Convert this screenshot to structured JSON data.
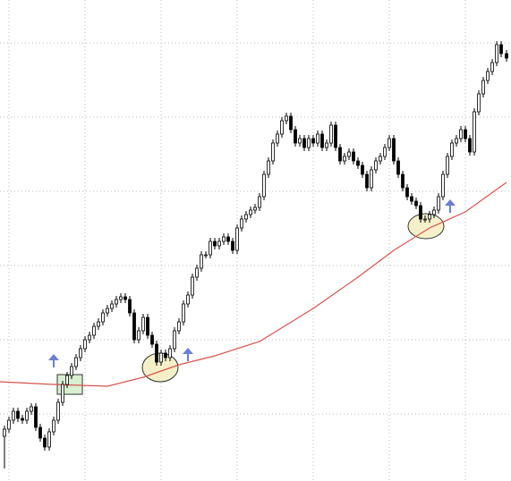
{
  "chart_data": {
    "type": "candlestick",
    "x": [
      5,
      10,
      15,
      20,
      25,
      30,
      35,
      40,
      45,
      50,
      55,
      60,
      65,
      70,
      75,
      80,
      85,
      90,
      95,
      100,
      105,
      110,
      115,
      120,
      125,
      130,
      135,
      140,
      145,
      150,
      155,
      160,
      165,
      170,
      175,
      180,
      185,
      190,
      195,
      200,
      205,
      210,
      215,
      220,
      225,
      230,
      235,
      240,
      245,
      250,
      255,
      260,
      265,
      270,
      275,
      280,
      285,
      290,
      295,
      300,
      305,
      310,
      315,
      320,
      325,
      330,
      335,
      340,
      345,
      350,
      355,
      360,
      365,
      370,
      375,
      380,
      385,
      390,
      395,
      400,
      405,
      410,
      415,
      420,
      425,
      430,
      435,
      440,
      445,
      450,
      455,
      460,
      465,
      470,
      475,
      480,
      485,
      490,
      495,
      500,
      505,
      510,
      515,
      520,
      525,
      530,
      535,
      540,
      545,
      550,
      555,
      560,
      566
    ],
    "open": [
      50,
      58,
      68,
      78,
      70,
      68,
      78,
      83,
      60,
      48,
      38,
      55,
      68,
      88,
      108,
      118,
      128,
      138,
      148,
      158,
      163,
      173,
      178,
      188,
      193,
      198,
      203,
      206,
      203,
      188,
      158,
      168,
      183,
      163,
      153,
      133,
      143,
      138,
      148,
      168,
      178,
      198,
      208,
      228,
      238,
      253,
      253,
      268,
      263,
      268,
      273,
      268,
      258,
      283,
      293,
      298,
      303,
      306,
      318,
      343,
      358,
      378,
      388,
      403,
      408,
      393,
      378,
      383,
      373,
      383,
      378,
      388,
      373,
      378,
      398,
      373,
      358,
      363,
      368,
      358,
      353,
      343,
      328,
      348,
      358,
      363,
      373,
      383,
      358,
      343,
      328,
      318,
      313,
      308,
      293,
      293,
      298,
      303,
      318,
      343,
      363,
      378,
      383,
      393,
      383,
      368,
      413,
      433,
      448,
      458,
      468,
      488,
      478
    ],
    "high": [
      62,
      72,
      82,
      82,
      74,
      82,
      87,
      87,
      64,
      52,
      59,
      72,
      92,
      112,
      122,
      132,
      142,
      152,
      162,
      167,
      177,
      182,
      192,
      197,
      202,
      207,
      210,
      210,
      207,
      192,
      172,
      187,
      187,
      167,
      157,
      147,
      147,
      152,
      172,
      182,
      202,
      212,
      232,
      242,
      257,
      257,
      272,
      272,
      272,
      277,
      277,
      272,
      287,
      297,
      302,
      307,
      310,
      322,
      347,
      362,
      382,
      392,
      407,
      412,
      412,
      397,
      387,
      387,
      387,
      387,
      392,
      392,
      382,
      402,
      402,
      377,
      367,
      372,
      372,
      362,
      357,
      347,
      352,
      362,
      367,
      377,
      387,
      387,
      362,
      347,
      332,
      322,
      317,
      312,
      297,
      302,
      307,
      322,
      347,
      367,
      382,
      387,
      397,
      397,
      387,
      417,
      437,
      452,
      462,
      472,
      492,
      492,
      482
    ],
    "low": [
      14,
      54,
      64,
      66,
      64,
      64,
      74,
      56,
      44,
      34,
      34,
      51,
      64,
      84,
      104,
      114,
      124,
      134,
      144,
      154,
      159,
      169,
      174,
      184,
      189,
      194,
      199,
      199,
      184,
      154,
      154,
      164,
      159,
      149,
      129,
      129,
      134,
      134,
      144,
      164,
      174,
      194,
      204,
      224,
      234,
      249,
      249,
      259,
      259,
      264,
      264,
      254,
      254,
      279,
      289,
      294,
      299,
      302,
      314,
      339,
      354,
      374,
      384,
      399,
      389,
      374,
      374,
      369,
      369,
      374,
      374,
      369,
      369,
      374,
      369,
      354,
      354,
      359,
      354,
      349,
      339,
      324,
      324,
      344,
      354,
      359,
      369,
      354,
      339,
      324,
      314,
      309,
      304,
      289,
      289,
      289,
      294,
      299,
      314,
      339,
      359,
      374,
      379,
      379,
      364,
      364,
      409,
      429,
      444,
      454,
      464,
      474,
      469
    ],
    "close": [
      58,
      68,
      78,
      70,
      68,
      78,
      83,
      60,
      48,
      38,
      55,
      68,
      88,
      108,
      118,
      128,
      138,
      148,
      158,
      163,
      173,
      178,
      188,
      193,
      198,
      203,
      206,
      203,
      188,
      158,
      168,
      183,
      163,
      153,
      133,
      143,
      138,
      148,
      168,
      178,
      198,
      208,
      228,
      238,
      253,
      253,
      268,
      263,
      268,
      273,
      268,
      258,
      283,
      293,
      298,
      303,
      306,
      318,
      343,
      358,
      378,
      388,
      403,
      408,
      393,
      378,
      383,
      373,
      383,
      378,
      388,
      373,
      378,
      398,
      373,
      358,
      363,
      368,
      358,
      353,
      343,
      328,
      348,
      358,
      363,
      373,
      383,
      358,
      343,
      328,
      318,
      313,
      308,
      293,
      293,
      298,
      303,
      318,
      343,
      363,
      378,
      383,
      393,
      383,
      368,
      413,
      433,
      448,
      458,
      468,
      488,
      478,
      473
    ],
    "up_color": "#ffffff",
    "down_color": "#000000",
    "overlay": {
      "type": "line",
      "x": [
        0,
        60,
        120,
        160,
        200,
        240,
        290,
        350,
        400,
        440,
        480,
        520,
        566
      ],
      "values": [
        111,
        108,
        106,
        116,
        130,
        140,
        156,
        193,
        228,
        258,
        283,
        301,
        334
      ],
      "color": "#d9534f"
    },
    "xlim": [
      0,
      571
    ],
    "ylim": [
      0,
      538
    ],
    "xticks": [
      10,
      95,
      180,
      265,
      350,
      435,
      520
    ],
    "yticks": [
      75,
      158,
      241,
      324,
      407,
      490
    ],
    "grid": true
  }
}
